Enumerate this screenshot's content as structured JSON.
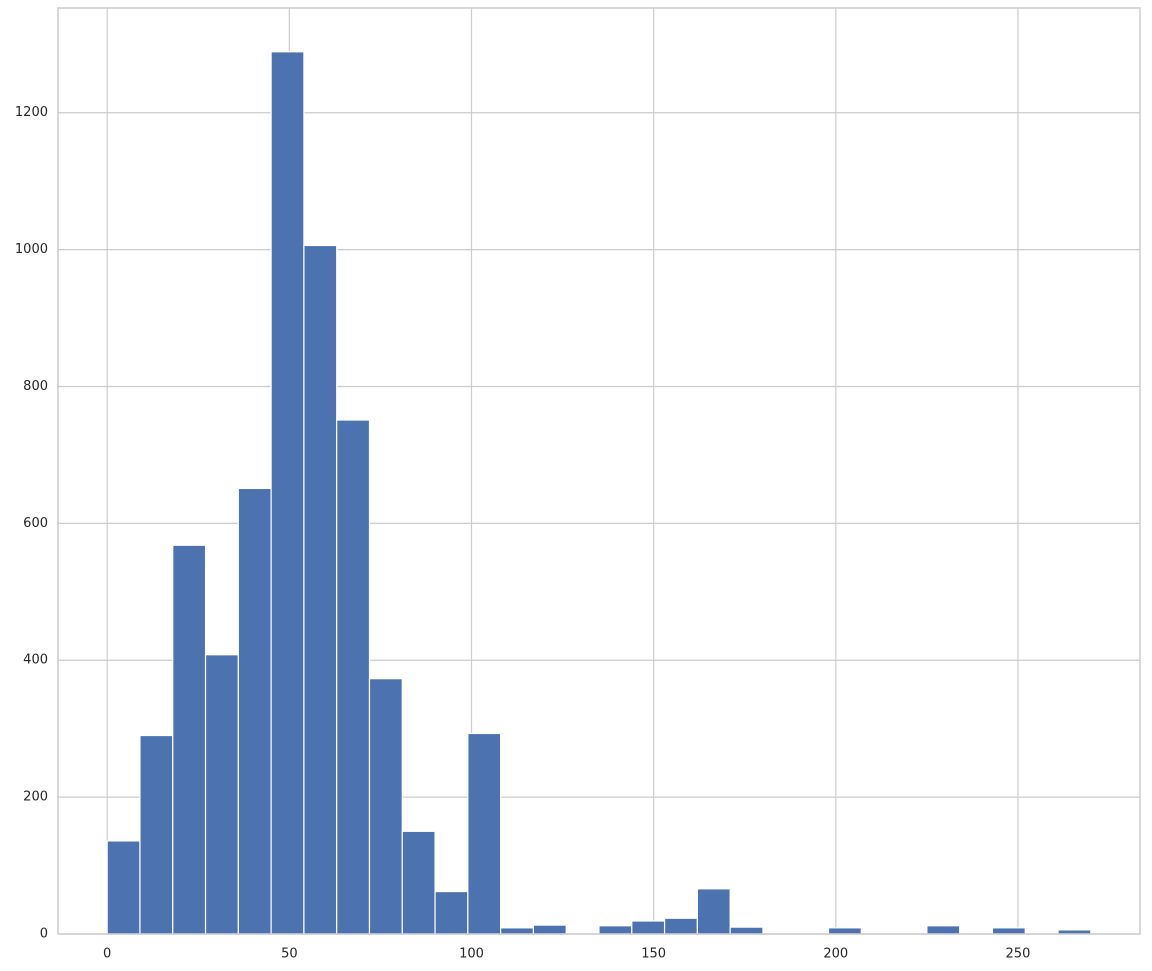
{
  "chart_data": {
    "type": "histogram",
    "bins": [
      0,
      9,
      18,
      27,
      36,
      45,
      54,
      63,
      72,
      81,
      90,
      99,
      108,
      117,
      126,
      135,
      144,
      153,
      162,
      171,
      180,
      189,
      198,
      207,
      216,
      225,
      234,
      243,
      252,
      261,
      270
    ],
    "counts": [
      136,
      290,
      568,
      408,
      651,
      1289,
      1006,
      751,
      373,
      150,
      62,
      293,
      9,
      13,
      0,
      12,
      19,
      23,
      66,
      10,
      0,
      0,
      9,
      0,
      0,
      12,
      0,
      9,
      0,
      6
    ],
    "color": "#4c72b0",
    "xlim": [
      -13.5,
      283.5
    ],
    "ylim": [
      0,
      1353
    ],
    "xticks": [
      0,
      50,
      100,
      150,
      200,
      250
    ],
    "yticks": [
      0,
      200,
      400,
      600,
      800,
      1000,
      1200
    ],
    "grid": true
  }
}
